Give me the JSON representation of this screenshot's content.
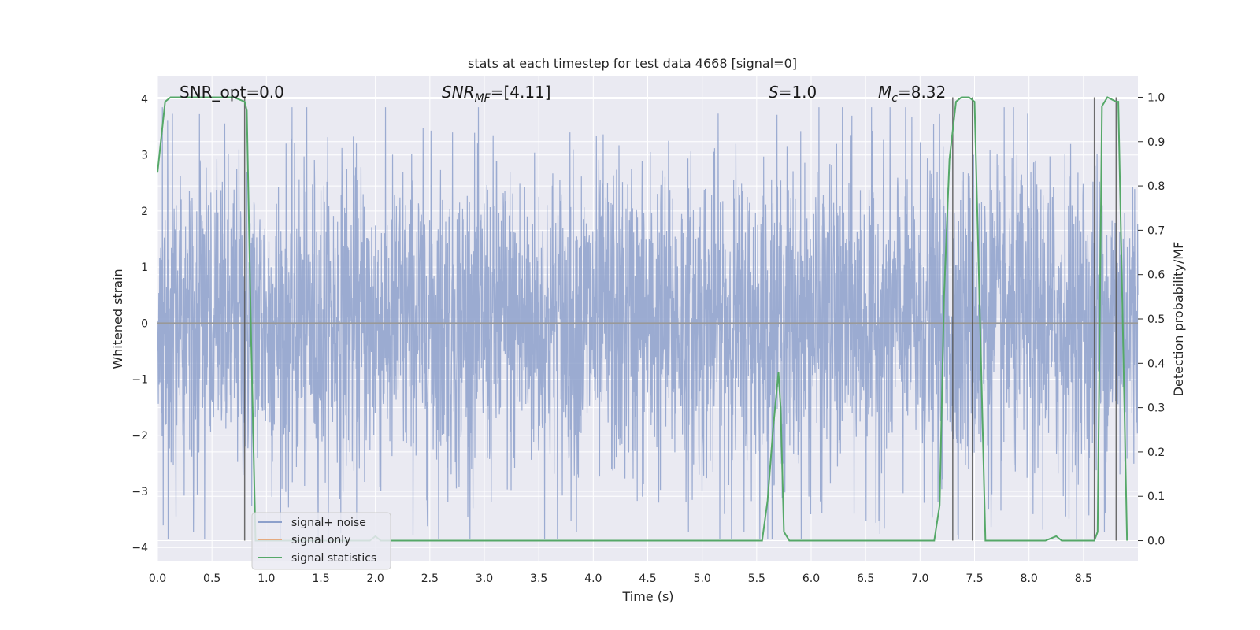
{
  "chart_data": {
    "type": "line",
    "title": "stats at each timestep for test data 4668 [signal=0]",
    "xlabel": "Time (s)",
    "ylabel": "Whitened strain",
    "y2label": "Detection probability/MF",
    "xlim": [
      0.0,
      9.0
    ],
    "ylim": [
      -4.25,
      4.4
    ],
    "y2lim": [
      -0.047,
      1.047
    ],
    "xticks": [
      "0.0",
      "0.5",
      "1.0",
      "1.5",
      "2.0",
      "2.5",
      "3.0",
      "3.5",
      "4.0",
      "4.5",
      "5.0",
      "5.5",
      "6.0",
      "6.5",
      "7.0",
      "7.5",
      "8.0",
      "8.5"
    ],
    "yticks": [
      "−4",
      "−3",
      "−2",
      "−1",
      "0",
      "1",
      "2",
      "3",
      "4"
    ],
    "y2ticks": [
      "0.0",
      "0.1",
      "0.2",
      "0.3",
      "0.4",
      "0.5",
      "0.6",
      "0.7",
      "0.8",
      "0.9",
      "1.0"
    ],
    "grid": true,
    "legend_position": "lower-left",
    "annotations": {
      "snr_opt": "SNR_opt=0.0",
      "snr_mf": "SNR",
      "snr_mf_sub": "MF",
      "snr_mf_value": "=[4.11]",
      "s": "S",
      "s_value": "=1.0",
      "mc": "M",
      "mc_sub": "c",
      "mc_value": "=8.32"
    },
    "noise_envelope": {
      "typical_abs": 1.5,
      "peak_max": 3.85,
      "peak_min": -3.85
    },
    "series": [
      {
        "name": "signal+ noise",
        "color": "#8da0cb"
      },
      {
        "name": "signal only",
        "color": "#e5aa7f",
        "x": [
          0.0,
          9.0
        ],
        "y": [
          0.0,
          0.0
        ]
      },
      {
        "name": "signal statistics",
        "color": "#55a868",
        "x": [
          0.0,
          0.07,
          0.12,
          0.2,
          0.3,
          0.4,
          0.5,
          0.6,
          0.7,
          0.8,
          0.82,
          0.86,
          0.9,
          1.0,
          1.5,
          1.9,
          1.95,
          2.0,
          2.05,
          2.1,
          2.5,
          3.0,
          4.0,
          5.0,
          5.5,
          5.55,
          5.6,
          5.65,
          5.7,
          5.72,
          5.75,
          5.8,
          5.9,
          6.0,
          6.5,
          7.0,
          7.13,
          7.18,
          7.22,
          7.27,
          7.33,
          7.38,
          7.45,
          7.5,
          7.55,
          7.6,
          7.7,
          8.0,
          8.15,
          8.25,
          8.3,
          8.35,
          8.5,
          8.6,
          8.63,
          8.67,
          8.72,
          8.8,
          8.82,
          8.86,
          8.9
        ],
        "y": [
          0.83,
          0.99,
          1.0,
          1.0,
          1.0,
          1.0,
          1.0,
          1.0,
          1.0,
          0.99,
          0.97,
          0.45,
          0.0,
          0.0,
          0.0,
          0.0,
          0.0,
          0.01,
          0.0,
          0.0,
          0.0,
          0.0,
          0.0,
          0.0,
          0.0,
          0.0,
          0.09,
          0.25,
          0.38,
          0.3,
          0.02,
          0.0,
          0.0,
          0.0,
          0.0,
          0.0,
          0.0,
          0.08,
          0.55,
          0.86,
          0.99,
          1.0,
          1.0,
          0.99,
          0.5,
          0.0,
          0.0,
          0.0,
          0.0,
          0.01,
          0.0,
          0.0,
          0.0,
          0.0,
          0.02,
          0.98,
          1.0,
          0.99,
          0.99,
          0.5,
          0.0
        ]
      }
    ],
    "vertical_markers": [
      0.8,
      7.3,
      7.48,
      8.6,
      8.8
    ]
  }
}
